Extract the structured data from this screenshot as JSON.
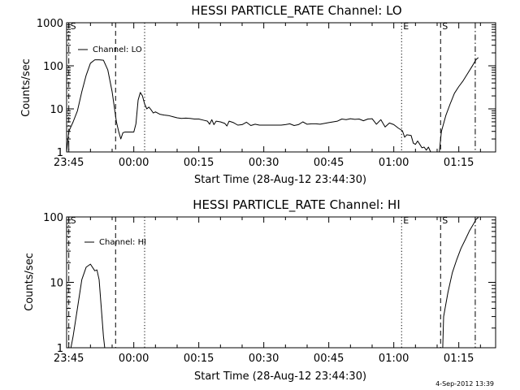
{
  "timestamp": "4-Sep-2012 13:39",
  "chart_data": [
    {
      "type": "line",
      "title": "HESSI PARTICLE_RATE Channel: LO",
      "xlabel": "Start Time (28-Aug-12 23:44:30)",
      "ylabel": "Counts/sec",
      "y_scale": "log",
      "ylim": [
        1,
        1000
      ],
      "y_ticks": [
        {
          "value": 1,
          "label": "1"
        },
        {
          "value": 10,
          "label": "10"
        },
        {
          "value": 100,
          "label": "100"
        },
        {
          "value": 1000,
          "label": "1000"
        }
      ],
      "x_units": "minutes after 23:45",
      "xlim": [
        -0.5,
        98.5
      ],
      "x_ticks": [
        {
          "value": 0,
          "label": "23:45"
        },
        {
          "value": 15,
          "label": "00:00"
        },
        {
          "value": 30,
          "label": "00:15"
        },
        {
          "value": 45,
          "label": "00:30"
        },
        {
          "value": 60,
          "label": "00:45"
        },
        {
          "value": 75,
          "label": "01:00"
        },
        {
          "value": 90,
          "label": "01:15"
        }
      ],
      "legend": {
        "label": "Channel: LO",
        "position": "top-left"
      },
      "markers": [
        {
          "x": 0,
          "style": "dashdot",
          "label": "S"
        },
        {
          "x": 10.8,
          "style": "dashed",
          "label": ""
        },
        {
          "x": 17.5,
          "style": "dotted",
          "label": ""
        },
        {
          "x": 76.8,
          "style": "dotted",
          "label": "E"
        },
        {
          "x": 85.8,
          "style": "dashed",
          "label": "S"
        },
        {
          "x": 93.8,
          "style": "dashdot",
          "label": ""
        }
      ],
      "series": [
        {
          "name": "Channel: LO",
          "segments": [
            [
              [
                -0.5,
                1
              ],
              [
                0,
                3
              ],
              [
                1,
                5
              ],
              [
                2,
                9
              ],
              [
                3,
                25
              ],
              [
                4,
                60
              ],
              [
                5,
                115
              ],
              [
                6,
                138
              ],
              [
                7,
                138
              ],
              [
                8,
                135
              ],
              [
                9,
                80
              ],
              [
                10,
                25
              ],
              [
                11,
                5
              ],
              [
                11.5,
                3
              ],
              [
                12,
                2
              ],
              [
                12.5,
                2.8
              ],
              [
                13,
                2.9
              ],
              [
                14,
                2.9
              ],
              [
                15,
                2.9
              ],
              [
                15.5,
                4.5
              ],
              [
                16,
                16
              ],
              [
                16.5,
                24
              ],
              [
                17,
                20
              ],
              [
                17.5,
                13
              ],
              [
                18,
                10
              ],
              [
                18.5,
                11
              ],
              [
                19,
                9.5
              ],
              [
                19.5,
                8
              ],
              [
                20,
                8.5
              ],
              [
                21,
                7.5
              ],
              [
                22,
                7.2
              ],
              [
                23,
                7
              ],
              [
                24,
                6.6
              ],
              [
                25,
                6.2
              ],
              [
                26,
                6
              ],
              [
                27,
                6.1
              ],
              [
                28,
                6
              ],
              [
                29,
                5.8
              ],
              [
                30,
                5.8
              ],
              [
                31,
                5.5
              ],
              [
                32,
                5.2
              ],
              [
                32.5,
                4.4
              ],
              [
                33,
                5.6
              ],
              [
                33.5,
                4.3
              ],
              [
                34,
                5.2
              ],
              [
                35,
                5
              ],
              [
                36,
                4.6
              ],
              [
                36.5,
                4
              ],
              [
                37,
                5.2
              ],
              [
                38,
                4.8
              ],
              [
                39,
                4.2
              ],
              [
                40,
                4.3
              ],
              [
                41,
                4.9
              ],
              [
                42,
                4.1
              ],
              [
                43,
                4.4
              ],
              [
                44,
                4.2
              ],
              [
                45,
                4.2
              ],
              [
                46,
                4.2
              ],
              [
                47,
                4.2
              ],
              [
                48,
                4.2
              ],
              [
                49,
                4.2
              ],
              [
                50,
                4.3
              ],
              [
                51,
                4.5
              ],
              [
                52,
                4.1
              ],
              [
                53,
                4.3
              ],
              [
                54,
                5
              ],
              [
                55,
                4.4
              ],
              [
                56,
                4.5
              ],
              [
                57,
                4.5
              ],
              [
                58,
                4.4
              ],
              [
                59,
                4.6
              ],
              [
                60,
                4.8
              ],
              [
                61,
                5
              ],
              [
                62,
                5.2
              ],
              [
                63,
                5.8
              ],
              [
                64,
                5.6
              ],
              [
                65,
                5.9
              ],
              [
                66,
                5.7
              ],
              [
                67,
                5.8
              ],
              [
                68,
                5.3
              ],
              [
                69,
                5.8
              ],
              [
                70,
                5.9
              ],
              [
                71,
                4.4
              ],
              [
                72,
                5.6
              ],
              [
                73,
                3.8
              ],
              [
                74,
                4.7
              ],
              [
                75,
                4.3
              ],
              [
                76,
                3.6
              ],
              [
                77,
                3.1
              ],
              [
                77.5,
                2.2
              ],
              [
                78,
                2.5
              ],
              [
                79,
                2.4
              ],
              [
                79.5,
                1.6
              ],
              [
                80,
                1.5
              ],
              [
                80.5,
                1.8
              ],
              [
                81,
                1.5
              ],
              [
                81.5,
                1.25
              ],
              [
                82,
                1.3
              ],
              [
                82.5,
                1.1
              ],
              [
                83,
                1.3
              ],
              [
                83.5,
                1
              ]
            ],
            [
              [
                85.5,
                1
              ],
              [
                86,
                3
              ],
              [
                87,
                7
              ],
              [
                88,
                13
              ],
              [
                89,
                23
              ],
              [
                90,
                33
              ],
              [
                91,
                45
              ],
              [
                92,
                65
              ],
              [
                93,
                95
              ],
              [
                94,
                140
              ],
              [
                94.5,
                155
              ]
            ]
          ]
        }
      ]
    },
    {
      "type": "line",
      "title": "HESSI PARTICLE_RATE Channel: HI",
      "xlabel": "Start Time (28-Aug-12 23:44:30)",
      "ylabel": "Counts/sec",
      "y_scale": "log",
      "ylim": [
        1,
        100
      ],
      "y_ticks": [
        {
          "value": 1,
          "label": "1"
        },
        {
          "value": 10,
          "label": "10"
        },
        {
          "value": 100,
          "label": "100"
        }
      ],
      "x_units": "minutes after 23:45",
      "xlim": [
        -0.5,
        98.5
      ],
      "x_ticks": [
        {
          "value": 0,
          "label": "23:45"
        },
        {
          "value": 15,
          "label": "00:00"
        },
        {
          "value": 30,
          "label": "00:15"
        },
        {
          "value": 45,
          "label": "00:30"
        },
        {
          "value": 60,
          "label": "00:45"
        },
        {
          "value": 75,
          "label": "01:00"
        },
        {
          "value": 90,
          "label": "01:15"
        }
      ],
      "legend": {
        "label": "Channel: HI",
        "position": "top-left"
      },
      "markers": [
        {
          "x": 0,
          "style": "dashdot",
          "label": "S"
        },
        {
          "x": 10.8,
          "style": "dashed",
          "label": ""
        },
        {
          "x": 17.5,
          "style": "dotted",
          "label": ""
        },
        {
          "x": 76.8,
          "style": "dotted",
          "label": "E"
        },
        {
          "x": 85.8,
          "style": "dashed",
          "label": "S"
        },
        {
          "x": 93.8,
          "style": "dashdot",
          "label": ""
        }
      ],
      "series": [
        {
          "name": "Channel: HI",
          "segments": [
            [
              [
                0.5,
                1
              ],
              [
                1,
                1.5
              ],
              [
                2,
                4
              ],
              [
                3,
                11
              ],
              [
                4,
                17
              ],
              [
                5,
                19
              ],
              [
                6,
                15
              ],
              [
                6.5,
                15.5
              ],
              [
                7,
                11
              ],
              [
                7.5,
                4
              ],
              [
                8,
                1.5
              ],
              [
                8.3,
                1
              ]
            ],
            [
              [
                86.3,
                1
              ],
              [
                86.5,
                3
              ],
              [
                87.5,
                7
              ],
              [
                88.5,
                14
              ],
              [
                89.5,
                22
              ],
              [
                90.5,
                33
              ],
              [
                91.5,
                45
              ],
              [
                92.5,
                62
              ],
              [
                93.5,
                80
              ],
              [
                94,
                92
              ],
              [
                94.5,
                98
              ]
            ]
          ]
        }
      ]
    }
  ]
}
